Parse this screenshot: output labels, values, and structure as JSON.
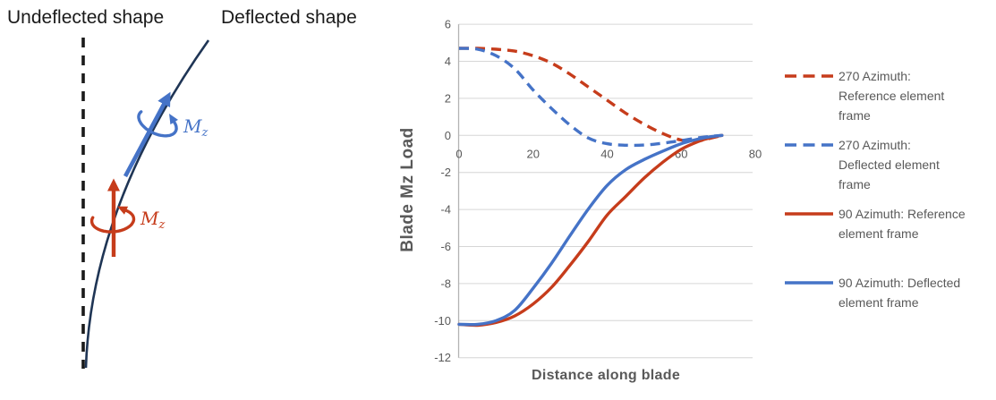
{
  "diagram": {
    "undeflected_label": "Undeflected shape",
    "deflected_label": "Deflected shape",
    "moment_label": {
      "base": "M",
      "sub": "z"
    }
  },
  "chart_data": {
    "type": "line",
    "title": "",
    "xlabel": "Distance along blade",
    "ylabel": "Blade Mz Load",
    "xlim": [
      0,
      80
    ],
    "ylim": [
      -12,
      6
    ],
    "xticks": [
      0,
      20,
      40,
      60,
      80
    ],
    "yticks": [
      6,
      4,
      2,
      0,
      -2,
      -4,
      -6,
      -8,
      -10,
      -12
    ],
    "grid": true,
    "legend_position": "right",
    "x": [
      0,
      5,
      10,
      15,
      20,
      25,
      30,
      35,
      40,
      45,
      50,
      55,
      60,
      65,
      68,
      71
    ],
    "series": [
      {
        "name": "270 Azimuth: Reference element frame",
        "color": "red",
        "style": "dashed",
        "values": [
          4.7,
          4.7,
          4.65,
          4.55,
          4.3,
          3.9,
          3.3,
          2.6,
          1.9,
          1.2,
          0.6,
          0.1,
          -0.25,
          -0.28,
          -0.15,
          0
        ]
      },
      {
        "name": "270 Azimuth: Deflected element frame",
        "color": "blue",
        "style": "dashed",
        "values": [
          4.7,
          4.65,
          4.3,
          3.6,
          2.45,
          1.45,
          0.55,
          -0.15,
          -0.45,
          -0.53,
          -0.52,
          -0.42,
          -0.28,
          -0.12,
          -0.05,
          0
        ]
      },
      {
        "name": "90 Azimuth: Reference element frame",
        "color": "red",
        "style": "solid",
        "values": [
          -10.2,
          -10.25,
          -10.1,
          -9.75,
          -9.1,
          -8.2,
          -7.0,
          -5.7,
          -4.3,
          -3.3,
          -2.3,
          -1.45,
          -0.75,
          -0.3,
          -0.12,
          0
        ]
      },
      {
        "name": "90 Azimuth: Deflected element frame",
        "color": "blue",
        "style": "solid",
        "values": [
          -10.2,
          -10.2,
          -10.0,
          -9.45,
          -8.25,
          -6.9,
          -5.4,
          -3.95,
          -2.7,
          -1.85,
          -1.3,
          -0.85,
          -0.45,
          -0.18,
          -0.07,
          0
        ]
      }
    ]
  },
  "legend": {
    "items": [
      {
        "lines": [
          "270 Azimuth:",
          "Reference element",
          "frame"
        ],
        "color": "red",
        "style": "dashed"
      },
      {
        "lines": [
          "270 Azimuth:",
          "Deflected element",
          "frame"
        ],
        "color": "blue",
        "style": "dashed"
      },
      {
        "lines": [
          "90 Azimuth: Reference",
          "element frame"
        ],
        "color": "red",
        "style": "solid"
      },
      {
        "lines": [
          "90 Azimuth: Deflected",
          "element frame"
        ],
        "color": "blue",
        "style": "solid"
      }
    ]
  },
  "colors": {
    "red": "#C63C1B",
    "blue": "#4573C7",
    "navy": "#1F3555",
    "black": "#1A1A1A",
    "gray_text": "#595959",
    "gridline": "#D6D6D6",
    "axis_line": "#B3B3B3"
  }
}
